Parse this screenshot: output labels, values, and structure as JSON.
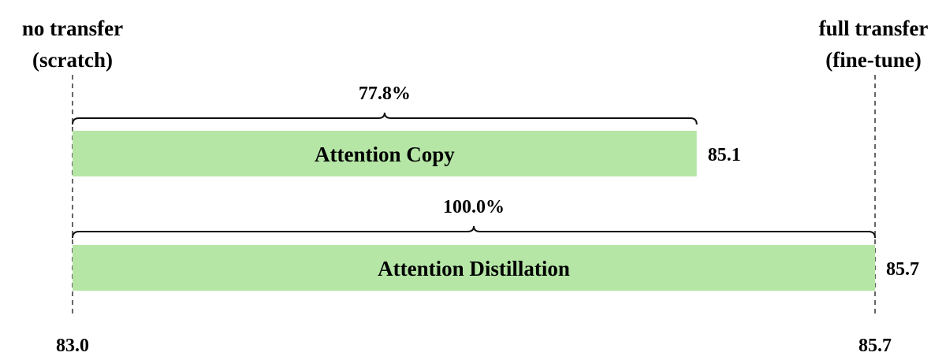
{
  "chart_data": {
    "type": "bar",
    "orientation": "horizontal",
    "xlim": [
      83.0,
      85.7
    ],
    "left_reference": {
      "line1": "no transfer",
      "line2": "(scratch)",
      "value": 83.0
    },
    "right_reference": {
      "line1": "full transfer",
      "line2": "(fine-tune)",
      "value": 85.7
    },
    "axis_ticks": [
      "83.0",
      "85.7"
    ],
    "bars": [
      {
        "label": "Attention Copy",
        "value": 85.1,
        "value_label": "85.1",
        "percent_label": "77.8%"
      },
      {
        "label": "Attention Distillation",
        "value": 85.7,
        "value_label": "85.7",
        "percent_label": "100.0%"
      }
    ],
    "colors": {
      "bar": "#b5e6a6",
      "text": "#000000"
    }
  }
}
